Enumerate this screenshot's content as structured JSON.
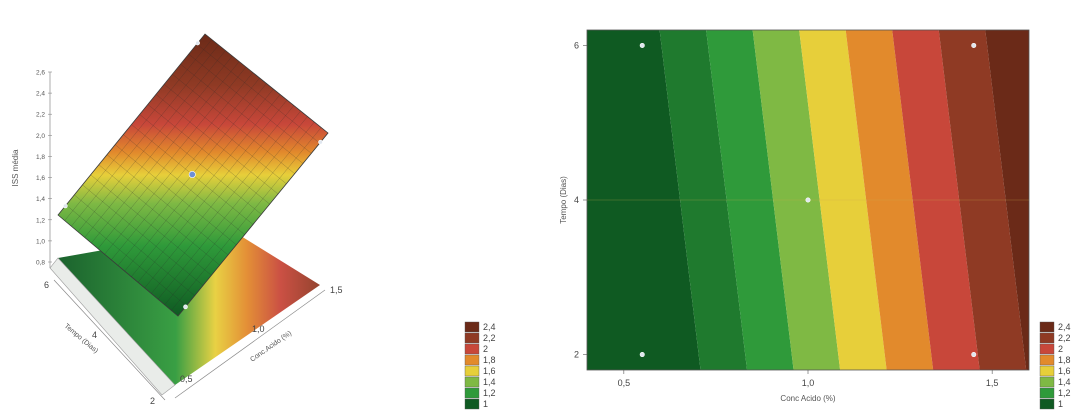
{
  "chart_data": [
    {
      "type": "surface",
      "x": {
        "label": "Conc.Acido (%)",
        "ticks": [
          "0,5",
          "1,0",
          "1,5"
        ],
        "range": [
          0.5,
          1.5
        ]
      },
      "y": {
        "label": "Tempo (Dias)",
        "ticks": [
          "2",
          "4",
          "6"
        ],
        "range": [
          2,
          6
        ]
      },
      "z": {
        "label": "ISS média",
        "ticks": [
          "0,8",
          "1,0",
          "1,2",
          "1,4",
          "1,6",
          "1,8",
          "2,0",
          "2,2",
          "2,4",
          "2,6"
        ],
        "range": [
          0.8,
          2.6
        ]
      },
      "design_points": [
        {
          "x": 0.55,
          "y": 6,
          "z": 1.0
        },
        {
          "x": 1.45,
          "y": 6,
          "z": 2.55
        },
        {
          "x": 1.0,
          "y": 4,
          "z": 1.75
        },
        {
          "x": 0.55,
          "y": 2,
          "z": 1.0
        },
        {
          "x": 1.45,
          "y": 2,
          "z": 2.55
        }
      ],
      "legend": {
        "position": "right",
        "levels": [
          "2,4",
          "2,2",
          "2",
          "1,8",
          "1,6",
          "1,4",
          "1,2",
          "1"
        ],
        "colors": [
          "#6b2a18",
          "#8f3a24",
          "#c8473a",
          "#e28a2c",
          "#e7cf3a",
          "#7fb944",
          "#2f9a3a",
          "#0f5a22"
        ]
      }
    },
    {
      "type": "contour",
      "xlabel": "Conc Acido (%)",
      "ylabel": "Tempo (Dias)",
      "x_ticks": [
        "0,5",
        "1,0",
        "1,5"
      ],
      "y_ticks": [
        "2",
        "4",
        "6"
      ],
      "xlim": [
        0.4,
        1.6
      ],
      "ylim": [
        1.8,
        6.2
      ],
      "levels": [
        1.0,
        1.2,
        1.4,
        1.6,
        1.8,
        2.0,
        2.2,
        2.4
      ],
      "design_points": [
        {
          "x": 0.55,
          "y": 6
        },
        {
          "x": 1.45,
          "y": 6
        },
        {
          "x": 1.0,
          "y": 4
        },
        {
          "x": 0.55,
          "y": 2
        },
        {
          "x": 1.45,
          "y": 2
        }
      ],
      "grid": false,
      "legend": {
        "position": "right",
        "levels": [
          "2,4",
          "2,2",
          "2",
          "1,8",
          "1,6",
          "1,4",
          "1,2",
          "1"
        ],
        "colors": [
          "#6b2a18",
          "#8f3a24",
          "#c8473a",
          "#e28a2c",
          "#e7cf3a",
          "#7fb944",
          "#2f9a3a",
          "#0f5a22"
        ]
      }
    }
  ]
}
